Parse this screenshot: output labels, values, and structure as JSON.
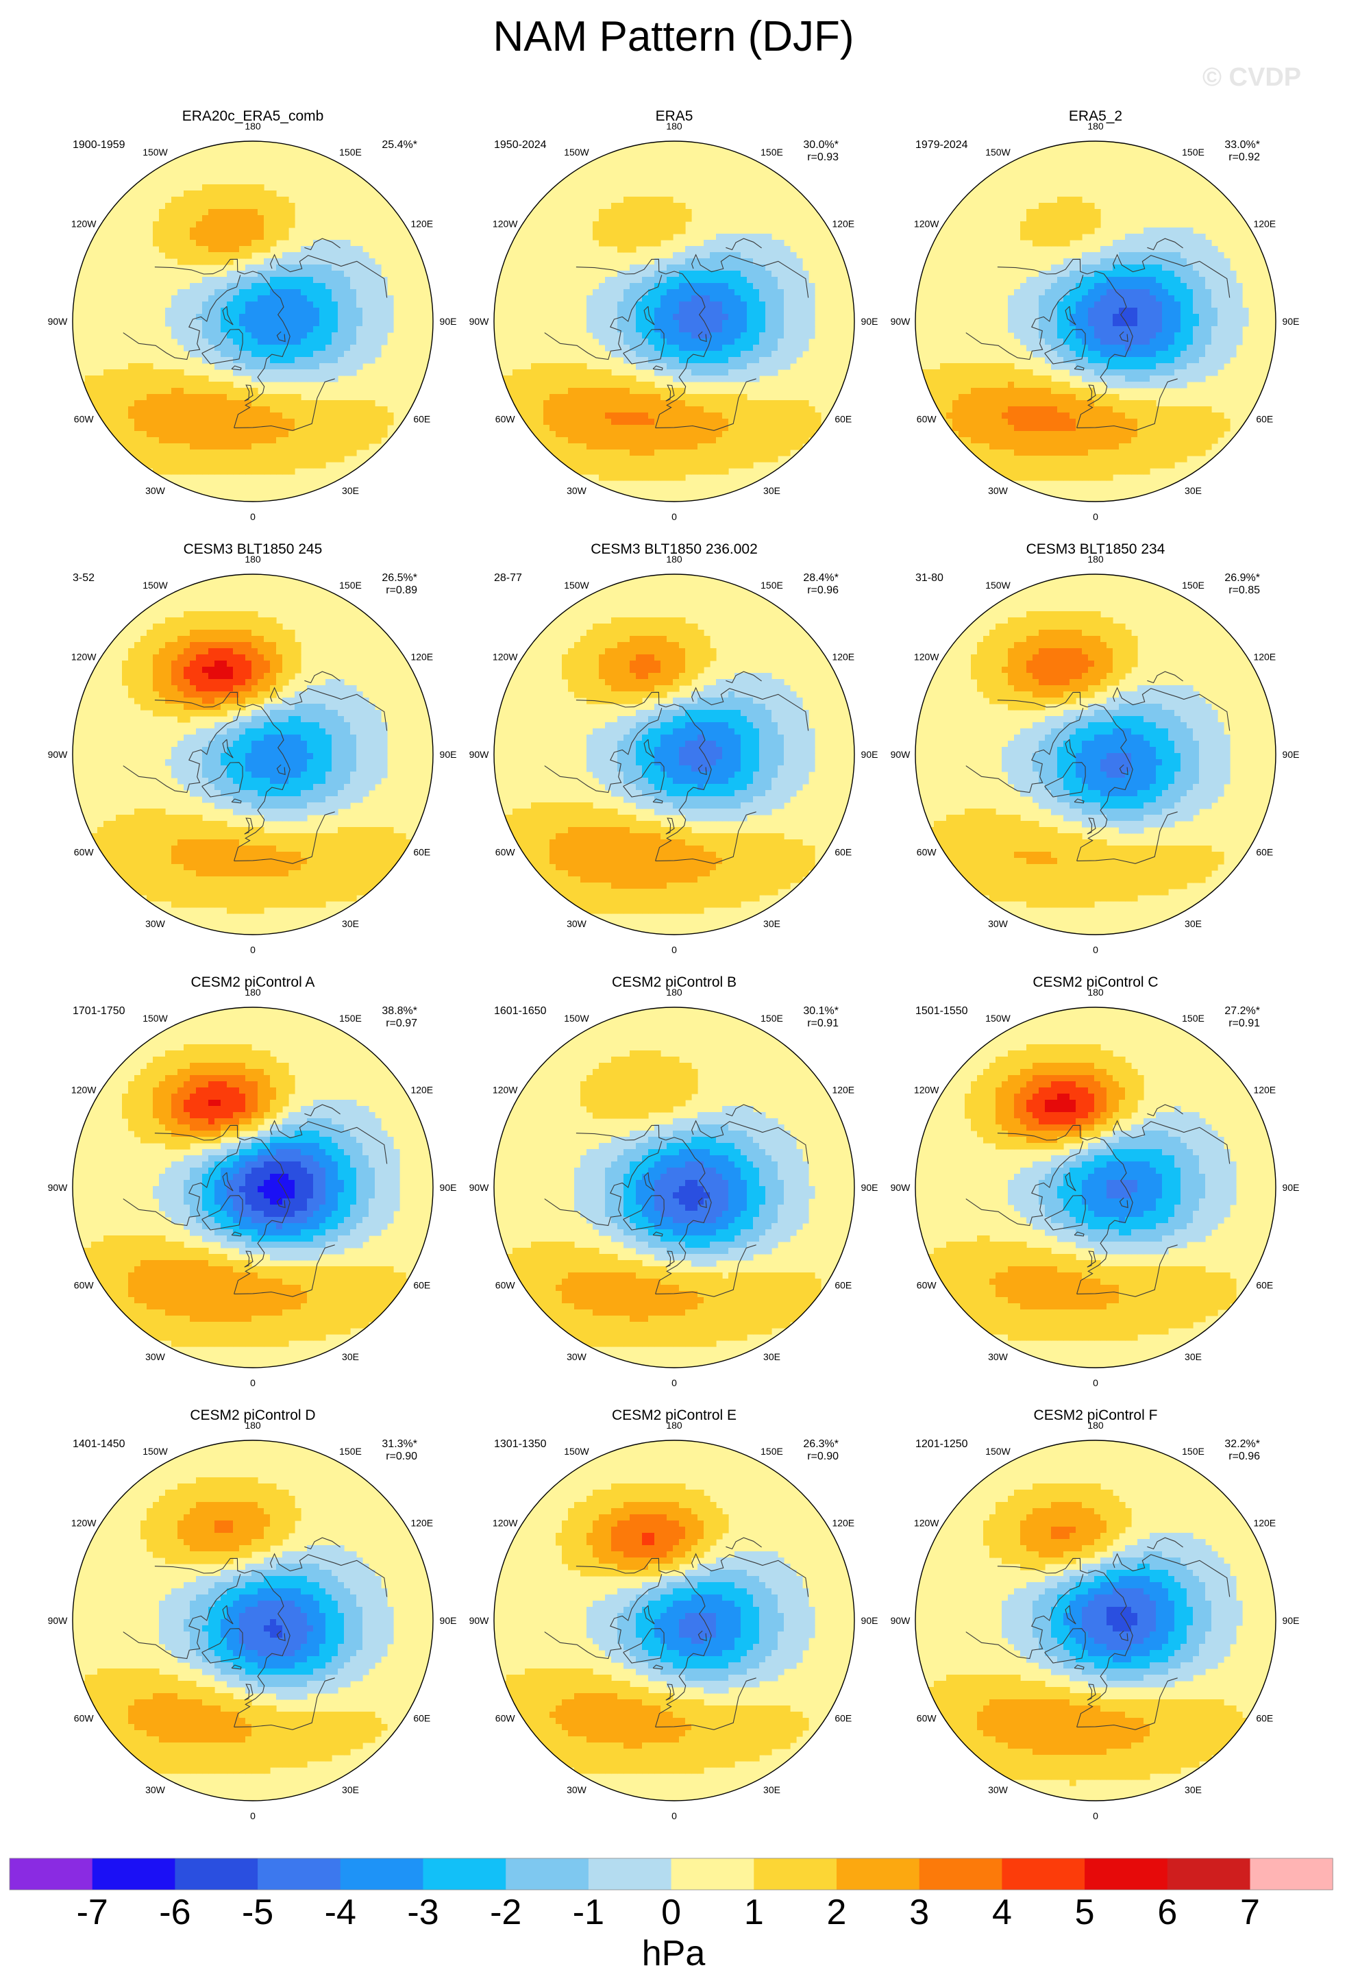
{
  "title": "NAM Pattern (DJF)",
  "watermark": "© CVDP",
  "colors": {
    "land_outline": "#3a3a3a",
    "frame": "#000000"
  },
  "chart_data": {
    "type": "polar-contour-map",
    "projection": "north polar stereographic",
    "variable": "sea level pressure NAM pattern",
    "units": "hPa",
    "colorbar": {
      "label": "hPa",
      "levels": [
        -7,
        -6,
        -5,
        -4,
        -3,
        -2,
        -1,
        0,
        1,
        2,
        3,
        4,
        5,
        6,
        7
      ],
      "level_labels": [
        "-7",
        "-6",
        "-5",
        "-4",
        "-3",
        "-2",
        "-1",
        "0",
        "1",
        "2",
        "3",
        "4",
        "5",
        "6",
        "7"
      ],
      "colors": [
        "#8a2be2",
        "#1b10f5",
        "#2a4fe0",
        "#3c78ee",
        "#1e93f7",
        "#12c0f8",
        "#7ec8f0",
        "#b4dcf0",
        "#fff59a",
        "#fcd635",
        "#fca810",
        "#fc7a0a",
        "#fc3c0a",
        "#e60a0a",
        "#cf1e1e",
        "#ffb4b4"
      ]
    },
    "lon_labels": [
      "180",
      "150E",
      "120E",
      "90E",
      "60E",
      "30E",
      "0",
      "30W",
      "60W",
      "90W",
      "120W",
      "150W"
    ],
    "panels": [
      {
        "title": "ERA20c_ERA5_comb",
        "years": "1900-1959",
        "pct": "25.4%*",
        "r": "",
        "low": {
          "lon": 100,
          "lat": 77,
          "min": -3.6
        },
        "high_pac": {
          "lon": 190,
          "lat": 48,
          "max": 2.6
        },
        "high_atl": {
          "lon": 345,
          "lat": 42,
          "max": 2.2
        }
      },
      {
        "title": "ERA5",
        "years": "1950-2024",
        "pct": "30.0%*",
        "r": "r=0.93",
        "low": {
          "lon": 100,
          "lat": 77,
          "min": -4.0
        },
        "high_pac": {
          "lon": 190,
          "lat": 48,
          "max": 1.6
        },
        "high_atl": {
          "lon": 345,
          "lat": 42,
          "max": 2.5
        }
      },
      {
        "title": "ERA5_2",
        "years": "1979-2024",
        "pct": "33.0%*",
        "r": "r=0.92",
        "low": {
          "lon": 95,
          "lat": 75,
          "min": -4.5
        },
        "high_pac": {
          "lon": 190,
          "lat": 48,
          "max": 1.4
        },
        "high_atl": {
          "lon": 340,
          "lat": 40,
          "max": 2.6
        }
      },
      {
        "title": "CESM3 BLT1850 245",
        "years": "3-52",
        "pct": "26.5%*",
        "r": "r=0.89",
        "low": {
          "lon": 85,
          "lat": 78,
          "min": -3.4
        },
        "high_pac": {
          "lon": 200,
          "lat": 48,
          "max": 4.6
        },
        "high_atl": {
          "lon": 0,
          "lat": 42,
          "max": 2.0
        }
      },
      {
        "title": "CESM3 BLT1850 236.002",
        "years": "28-77",
        "pct": "28.4%*",
        "r": "r=0.96",
        "low": {
          "lon": 95,
          "lat": 78,
          "min": -3.9
        },
        "high_pac": {
          "lon": 195,
          "lat": 48,
          "max": 3.0
        },
        "high_atl": {
          "lon": 345,
          "lat": 40,
          "max": 2.3
        }
      },
      {
        "title": "CESM3 BLT1850 234",
        "years": "31-80",
        "pct": "26.9%*",
        "r": "r=0.85",
        "low": {
          "lon": 60,
          "lat": 78,
          "min": -3.8
        },
        "high_pac": {
          "lon": 200,
          "lat": 45,
          "max": 3.1
        },
        "high_atl": {
          "lon": 350,
          "lat": 42,
          "max": 1.8
        }
      },
      {
        "title": "CESM2 piControl A",
        "years": "1701-1750",
        "pct": "38.8%*",
        "r": "r=0.97",
        "low": {
          "lon": 90,
          "lat": 78,
          "min": -5.5
        },
        "high_pac": {
          "lon": 200,
          "lat": 48,
          "max": 4.8
        },
        "high_atl": {
          "lon": 350,
          "lat": 42,
          "max": 2.6
        }
      },
      {
        "title": "CESM2 piControl B",
        "years": "1601-1650",
        "pct": "30.1%*",
        "r": "r=0.91",
        "low": {
          "lon": 60,
          "lat": 80,
          "min": -4.6
        },
        "high_pac": {
          "lon": 195,
          "lat": 45,
          "max": 1.6
        },
        "high_atl": {
          "lon": 350,
          "lat": 40,
          "max": 2.3
        }
      },
      {
        "title": "CESM2 piControl C",
        "years": "1501-1550",
        "pct": "27.2%*",
        "r": "r=0.91",
        "low": {
          "lon": 90,
          "lat": 78,
          "min": -3.8
        },
        "high_pac": {
          "lon": 200,
          "lat": 48,
          "max": 4.7
        },
        "high_atl": {
          "lon": 350,
          "lat": 42,
          "max": 2.0
        }
      },
      {
        "title": "CESM2 piControl D",
        "years": "1401-1450",
        "pct": "31.3%*",
        "r": "r=0.90",
        "low": {
          "lon": 60,
          "lat": 78,
          "min": -4.5
        },
        "high_pac": {
          "lon": 195,
          "lat": 45,
          "max": 2.6
        },
        "high_atl": {
          "lon": 345,
          "lat": 42,
          "max": 2.3
        }
      },
      {
        "title": "CESM2 piControl E",
        "years": "1301-1350",
        "pct": "26.3%*",
        "r": "r=0.90",
        "low": {
          "lon": 75,
          "lat": 78,
          "min": -3.9
        },
        "high_pac": {
          "lon": 195,
          "lat": 50,
          "max": 3.7
        },
        "high_atl": {
          "lon": 345,
          "lat": 42,
          "max": 2.2
        }
      },
      {
        "title": "CESM2 piControl F",
        "years": "1201-1250",
        "pct": "32.2%*",
        "r": "r=0.96",
        "low": {
          "lon": 100,
          "lat": 78,
          "min": -4.6
        },
        "high_pac": {
          "lon": 195,
          "lat": 48,
          "max": 3.1
        },
        "high_atl": {
          "lon": 350,
          "lat": 40,
          "max": 2.3
        }
      }
    ]
  }
}
